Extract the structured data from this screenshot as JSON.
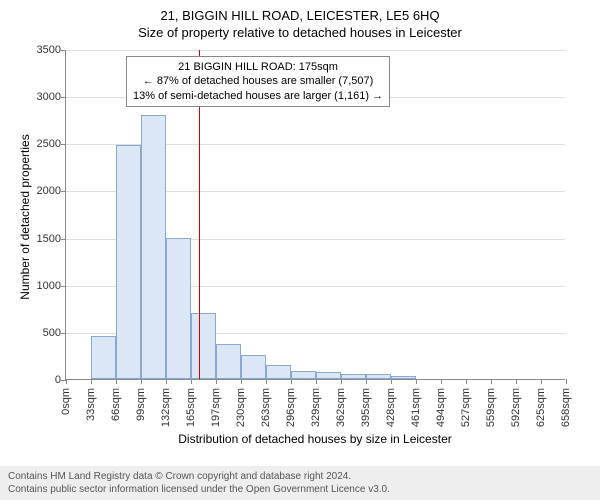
{
  "title_main": "21, BIGGIN HILL ROAD, LEICESTER, LE5 6HQ",
  "title_sub": "Size of property relative to detached houses in Leicester",
  "chart": {
    "type": "histogram",
    "y_axis_title": "Number of detached properties",
    "x_axis_title": "Distribution of detached houses by size in Leicester",
    "ylim": [
      0,
      3500
    ],
    "ytick_step": 500,
    "yticks": [
      0,
      500,
      1000,
      1500,
      2000,
      2500,
      3000,
      3500
    ],
    "x_bin_width": 33,
    "x_categories_sqm": [
      0,
      33,
      66,
      99,
      132,
      165,
      197,
      230,
      263,
      296,
      329,
      362,
      395,
      428,
      461,
      494,
      527,
      559,
      592,
      625,
      658
    ],
    "bar_values": [
      0,
      460,
      2480,
      2800,
      1500,
      700,
      370,
      250,
      150,
      80,
      70,
      50,
      50,
      30,
      0,
      0,
      0,
      0,
      0,
      0
    ],
    "bar_fill_color": "#dce7f5",
    "bar_border_color": "#89a9d3",
    "grid_color": "#dddddd",
    "axis_color": "#888888",
    "background_color": "#ffffff",
    "reference_line": {
      "value_sqm": 175,
      "color": "#cc0000"
    },
    "annotation": {
      "lines": [
        "21 BIGGIN HILL ROAD: 175sqm",
        "← 87% of detached houses are smaller (7,507)",
        "13% of semi-detached houses are larger (1,161) →"
      ],
      "border_color": "#888888",
      "background": "#ffffff",
      "fontsize": 11
    }
  },
  "footer": {
    "line1": "Contains HM Land Registry data © Crown copyright and database right 2024.",
    "line2": "Contains public sector information licensed under the Open Government Licence v3.0.",
    "background": "#eeeeee"
  }
}
